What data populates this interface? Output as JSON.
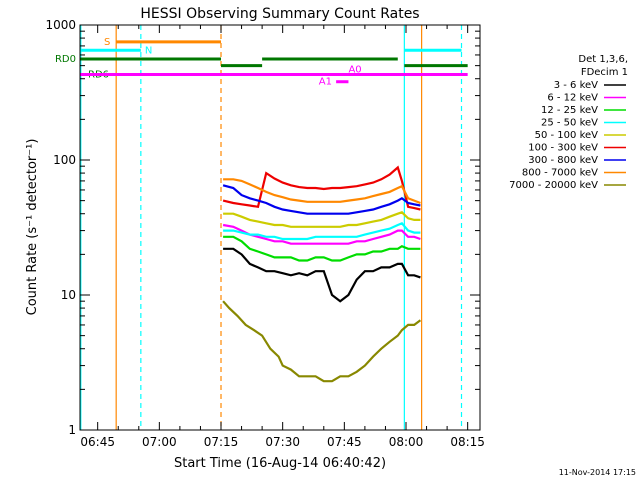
{
  "footer_timestamp": "11-Nov-2014 17:15",
  "chart_data": {
    "type": "line",
    "title": "HESSI Observing Summary Count Rates",
    "xlabel": "Start Time (16-Aug-14 06:40:42)",
    "ylabel": "Count Rate (s⁻¹ detector⁻¹)",
    "yscale": "log",
    "ylim": [
      1,
      1000
    ],
    "xlim_minutes": [
      40.7,
      138
    ],
    "x_ticks": [
      {
        "t": 45,
        "label": "06:45"
      },
      {
        "t": 60,
        "label": "07:00"
      },
      {
        "t": 75,
        "label": "07:15"
      },
      {
        "t": 90,
        "label": "07:30"
      },
      {
        "t": 105,
        "label": "07:45"
      },
      {
        "t": 120,
        "label": "08:00"
      },
      {
        "t": 135,
        "label": "08:15"
      }
    ],
    "y_ticks": [
      {
        "v": 1,
        "label": "1"
      },
      {
        "v": 10,
        "label": "10"
      },
      {
        "v": 100,
        "label": "100"
      },
      {
        "v": 1000,
        "label": "1000"
      }
    ],
    "legend": {
      "header": [
        "Det 1,3,6,",
        "FDecim 1"
      ],
      "position": "right"
    },
    "series": [
      {
        "name": "3 - 6 keV",
        "color": "#000000",
        "points": [
          [
            75.5,
            22
          ],
          [
            78,
            22
          ],
          [
            80,
            20
          ],
          [
            82,
            17
          ],
          [
            84,
            16
          ],
          [
            86,
            15
          ],
          [
            88,
            15
          ],
          [
            90,
            14.5
          ],
          [
            92,
            14
          ],
          [
            94,
            14.5
          ],
          [
            96,
            14
          ],
          [
            98,
            15
          ],
          [
            100,
            15
          ],
          [
            102,
            10
          ],
          [
            104,
            9
          ],
          [
            106,
            10
          ],
          [
            108,
            13
          ],
          [
            110,
            15
          ],
          [
            112,
            15
          ],
          [
            114,
            16
          ],
          [
            116,
            16
          ],
          [
            118,
            17
          ],
          [
            119,
            17
          ],
          [
            120.5,
            14
          ],
          [
            122,
            14
          ],
          [
            123.5,
            13.5
          ]
        ]
      },
      {
        "name": "6 - 12 keV",
        "color": "#ff00ff",
        "points": [
          [
            75.5,
            33
          ],
          [
            78,
            32
          ],
          [
            80,
            30
          ],
          [
            82,
            28
          ],
          [
            84,
            27
          ],
          [
            86,
            26
          ],
          [
            88,
            25
          ],
          [
            90,
            25
          ],
          [
            92,
            24
          ],
          [
            94,
            24
          ],
          [
            96,
            24
          ],
          [
            98,
            24
          ],
          [
            100,
            24
          ],
          [
            102,
            24
          ],
          [
            104,
            24
          ],
          [
            106,
            24
          ],
          [
            108,
            25
          ],
          [
            110,
            25
          ],
          [
            112,
            26
          ],
          [
            114,
            27
          ],
          [
            116,
            28
          ],
          [
            118,
            30
          ],
          [
            119,
            30
          ],
          [
            120.5,
            27
          ],
          [
            122,
            27
          ],
          [
            123.5,
            26
          ]
        ]
      },
      {
        "name": "12 - 25 keV",
        "color": "#00dd00",
        "points": [
          [
            75.5,
            27
          ],
          [
            78,
            27
          ],
          [
            80,
            25
          ],
          [
            82,
            22
          ],
          [
            84,
            21
          ],
          [
            86,
            20
          ],
          [
            88,
            19
          ],
          [
            90,
            19
          ],
          [
            92,
            19
          ],
          [
            94,
            18
          ],
          [
            96,
            18
          ],
          [
            98,
            19
          ],
          [
            100,
            19
          ],
          [
            102,
            18
          ],
          [
            104,
            18
          ],
          [
            106,
            19
          ],
          [
            108,
            20
          ],
          [
            110,
            20
          ],
          [
            112,
            21
          ],
          [
            114,
            21
          ],
          [
            116,
            22
          ],
          [
            118,
            22
          ],
          [
            119,
            23
          ],
          [
            120.5,
            22
          ],
          [
            122,
            22
          ],
          [
            123.5,
            22
          ]
        ]
      },
      {
        "name": "25 - 50 keV",
        "color": "#00ffff",
        "points": [
          [
            75.5,
            30
          ],
          [
            78,
            30
          ],
          [
            80,
            29
          ],
          [
            82,
            28
          ],
          [
            84,
            28
          ],
          [
            86,
            27
          ],
          [
            88,
            27
          ],
          [
            90,
            26
          ],
          [
            92,
            26
          ],
          [
            94,
            26
          ],
          [
            96,
            26
          ],
          [
            98,
            27
          ],
          [
            100,
            27
          ],
          [
            102,
            27
          ],
          [
            104,
            27
          ],
          [
            106,
            27
          ],
          [
            108,
            27
          ],
          [
            110,
            28
          ],
          [
            112,
            29
          ],
          [
            114,
            30
          ],
          [
            116,
            31
          ],
          [
            118,
            33
          ],
          [
            119,
            34
          ],
          [
            120.5,
            30
          ],
          [
            122,
            29
          ],
          [
            123.5,
            29
          ]
        ]
      },
      {
        "name": "50 - 100 keV",
        "color": "#cccc00",
        "points": [
          [
            75.5,
            40
          ],
          [
            78,
            40
          ],
          [
            80,
            38
          ],
          [
            82,
            36
          ],
          [
            84,
            35
          ],
          [
            86,
            34
          ],
          [
            88,
            33
          ],
          [
            90,
            33
          ],
          [
            92,
            32
          ],
          [
            94,
            32
          ],
          [
            96,
            32
          ],
          [
            98,
            32
          ],
          [
            100,
            32
          ],
          [
            102,
            32
          ],
          [
            104,
            32
          ],
          [
            106,
            33
          ],
          [
            108,
            33
          ],
          [
            110,
            34
          ],
          [
            112,
            35
          ],
          [
            114,
            36
          ],
          [
            116,
            38
          ],
          [
            118,
            40
          ],
          [
            119,
            41
          ],
          [
            120.5,
            37
          ],
          [
            122,
            36
          ],
          [
            123.5,
            36
          ]
        ]
      },
      {
        "name": "100 - 300 keV",
        "color": "#ee0000",
        "points": [
          [
            75.5,
            50
          ],
          [
            78,
            48
          ],
          [
            80,
            47
          ],
          [
            82,
            46
          ],
          [
            84,
            45
          ],
          [
            86,
            80
          ],
          [
            88,
            73
          ],
          [
            90,
            68
          ],
          [
            92,
            65
          ],
          [
            94,
            63
          ],
          [
            96,
            62
          ],
          [
            98,
            62
          ],
          [
            100,
            61
          ],
          [
            102,
            62
          ],
          [
            104,
            62
          ],
          [
            106,
            63
          ],
          [
            108,
            64
          ],
          [
            110,
            66
          ],
          [
            112,
            68
          ],
          [
            114,
            72
          ],
          [
            116,
            78
          ],
          [
            118,
            88
          ],
          [
            119,
            70
          ],
          [
            120.5,
            45
          ],
          [
            122,
            44
          ],
          [
            123.5,
            43
          ]
        ]
      },
      {
        "name": "300 - 800 keV",
        "color": "#0000ee",
        "points": [
          [
            75.5,
            65
          ],
          [
            78,
            62
          ],
          [
            80,
            55
          ],
          [
            82,
            52
          ],
          [
            84,
            50
          ],
          [
            86,
            48
          ],
          [
            88,
            45
          ],
          [
            90,
            43
          ],
          [
            92,
            42
          ],
          [
            94,
            41
          ],
          [
            96,
            40
          ],
          [
            98,
            40
          ],
          [
            100,
            40
          ],
          [
            102,
            40
          ],
          [
            104,
            40
          ],
          [
            106,
            40
          ],
          [
            108,
            41
          ],
          [
            110,
            42
          ],
          [
            112,
            43
          ],
          [
            114,
            45
          ],
          [
            116,
            47
          ],
          [
            118,
            50
          ],
          [
            119,
            52
          ],
          [
            120.5,
            48
          ],
          [
            122,
            47
          ],
          [
            123.5,
            46
          ]
        ]
      },
      {
        "name": "800 - 7000 keV",
        "color": "#ff8800",
        "points": [
          [
            75.5,
            72
          ],
          [
            78,
            72
          ],
          [
            80,
            70
          ],
          [
            82,
            66
          ],
          [
            84,
            62
          ],
          [
            86,
            58
          ],
          [
            88,
            55
          ],
          [
            90,
            53
          ],
          [
            92,
            51
          ],
          [
            94,
            50
          ],
          [
            96,
            49
          ],
          [
            98,
            49
          ],
          [
            100,
            49
          ],
          [
            102,
            49
          ],
          [
            104,
            49
          ],
          [
            106,
            50
          ],
          [
            108,
            51
          ],
          [
            110,
            52
          ],
          [
            112,
            54
          ],
          [
            114,
            56
          ],
          [
            116,
            58
          ],
          [
            118,
            62
          ],
          [
            119,
            64
          ],
          [
            120.5,
            52
          ],
          [
            122,
            50
          ],
          [
            123.5,
            48
          ]
        ]
      },
      {
        "name": "7000 - 20000 keV",
        "color": "#888800",
        "points": [
          [
            75.5,
            9
          ],
          [
            77,
            8
          ],
          [
            79,
            7
          ],
          [
            81,
            6
          ],
          [
            83,
            5.5
          ],
          [
            85,
            5
          ],
          [
            87,
            4
          ],
          [
            89,
            3.5
          ],
          [
            90,
            3
          ],
          [
            92,
            2.8
          ],
          [
            94,
            2.5
          ],
          [
            96,
            2.5
          ],
          [
            98,
            2.5
          ],
          [
            100,
            2.3
          ],
          [
            102,
            2.3
          ],
          [
            104,
            2.5
          ],
          [
            106,
            2.5
          ],
          [
            108,
            2.7
          ],
          [
            110,
            3
          ],
          [
            112,
            3.5
          ],
          [
            114,
            4
          ],
          [
            116,
            4.5
          ],
          [
            118,
            5
          ],
          [
            119,
            5.5
          ],
          [
            120.5,
            6
          ],
          [
            122,
            6
          ],
          [
            123.5,
            6.5
          ]
        ]
      }
    ],
    "flags": [
      {
        "name": "S",
        "color": "#ff8800",
        "y": 750,
        "segments": [
          [
            49.5,
            75
          ]
        ]
      },
      {
        "name": "N",
        "color": "#00ffff",
        "y": 650,
        "segments": [
          [
            40.7,
            55.5
          ],
          [
            119.6,
            133.5
          ]
        ]
      },
      {
        "name": "RD0",
        "color": "#007700",
        "y": 560,
        "segments": [
          [
            40.7,
            75
          ],
          [
            85,
            118
          ]
        ]
      },
      {
        "name": "RD6",
        "color": "#007700",
        "y": 500,
        "segments": [
          [
            75,
            85
          ],
          [
            119.6,
            135
          ]
        ]
      },
      {
        "name": "A0",
        "color": "#ff00ff",
        "y": 430,
        "segments": [
          [
            40.7,
            135
          ]
        ]
      },
      {
        "name": "A1",
        "color": "#ff00ff",
        "y": 380,
        "segments": [
          [
            103,
            106
          ]
        ]
      }
    ],
    "vertical_markers": [
      {
        "t": 49.5,
        "color": "#ff8800",
        "style": "solid"
      },
      {
        "t": 55.5,
        "color": "#00ffff",
        "style": "dashed"
      },
      {
        "t": 75,
        "color": "#ff8800",
        "style": "dashed"
      },
      {
        "t": 119.6,
        "color": "#00ffff",
        "style": "solid"
      },
      {
        "t": 123.8,
        "color": "#ff8800",
        "style": "solid"
      },
      {
        "t": 133.5,
        "color": "#00ffff",
        "style": "dashed"
      },
      {
        "t": 40.9,
        "color": "#00ffff",
        "style": "solid"
      }
    ]
  }
}
